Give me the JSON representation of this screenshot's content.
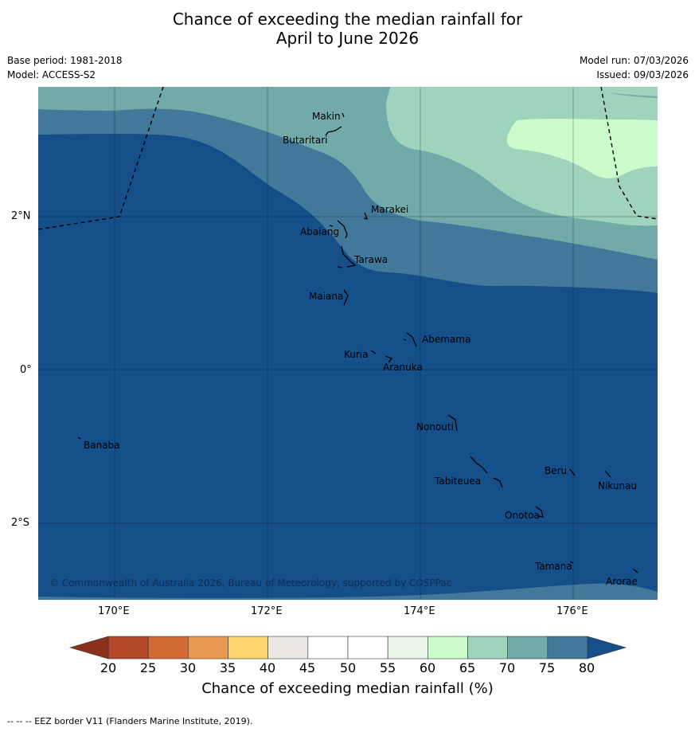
{
  "title": {
    "line1": "Chance of exceeding the median rainfall for",
    "line2": "April to June 2026"
  },
  "meta": {
    "base_period": "Base period: 1981-2018",
    "model": "Model: ACCESS-S2",
    "model_run": "Model run: 07/03/2026",
    "issued": "Issued: 09/03/2026"
  },
  "map": {
    "copyright": "© Commonwealth of Australia 2026, Bureau of Meteorology, supported by COSPPac",
    "lat_labels": [
      "2°N",
      "0°",
      "2°S"
    ],
    "lon_labels": [
      "170°E",
      "172°E",
      "174°E",
      "176°E"
    ],
    "islands": [
      "Makin",
      "Butaritari",
      "Marakei",
      "Abaiang",
      "Tarawa",
      "Maiana",
      "Abemama",
      "Kuria",
      "Aranuka",
      "Nonouti",
      "Banaba",
      "Beru",
      "Nikunau",
      "Tabiteuea",
      "Onotoa",
      "Tamana",
      "Arorae"
    ]
  },
  "colorbar": {
    "title": "Chance of exceeding median rainfall (%)",
    "labels": [
      "20",
      "25",
      "30",
      "35",
      "40",
      "45",
      "50",
      "55",
      "60",
      "65",
      "70",
      "75",
      "80"
    ],
    "colors": [
      "#b5472a",
      "#d36a35",
      "#e8994f",
      "#fdd46b",
      "#ece8e4",
      "#ffffff",
      "#ffffff",
      "#eaf5ea",
      "#ccfccc",
      "#9fd3bc",
      "#72a9a9",
      "#42799a"
    ],
    "low_color": "#8b301d",
    "high_color": "#154f8a"
  },
  "footer": "--  --  -- EEZ border V11 (Flanders Marine Institute, 2019)."
}
